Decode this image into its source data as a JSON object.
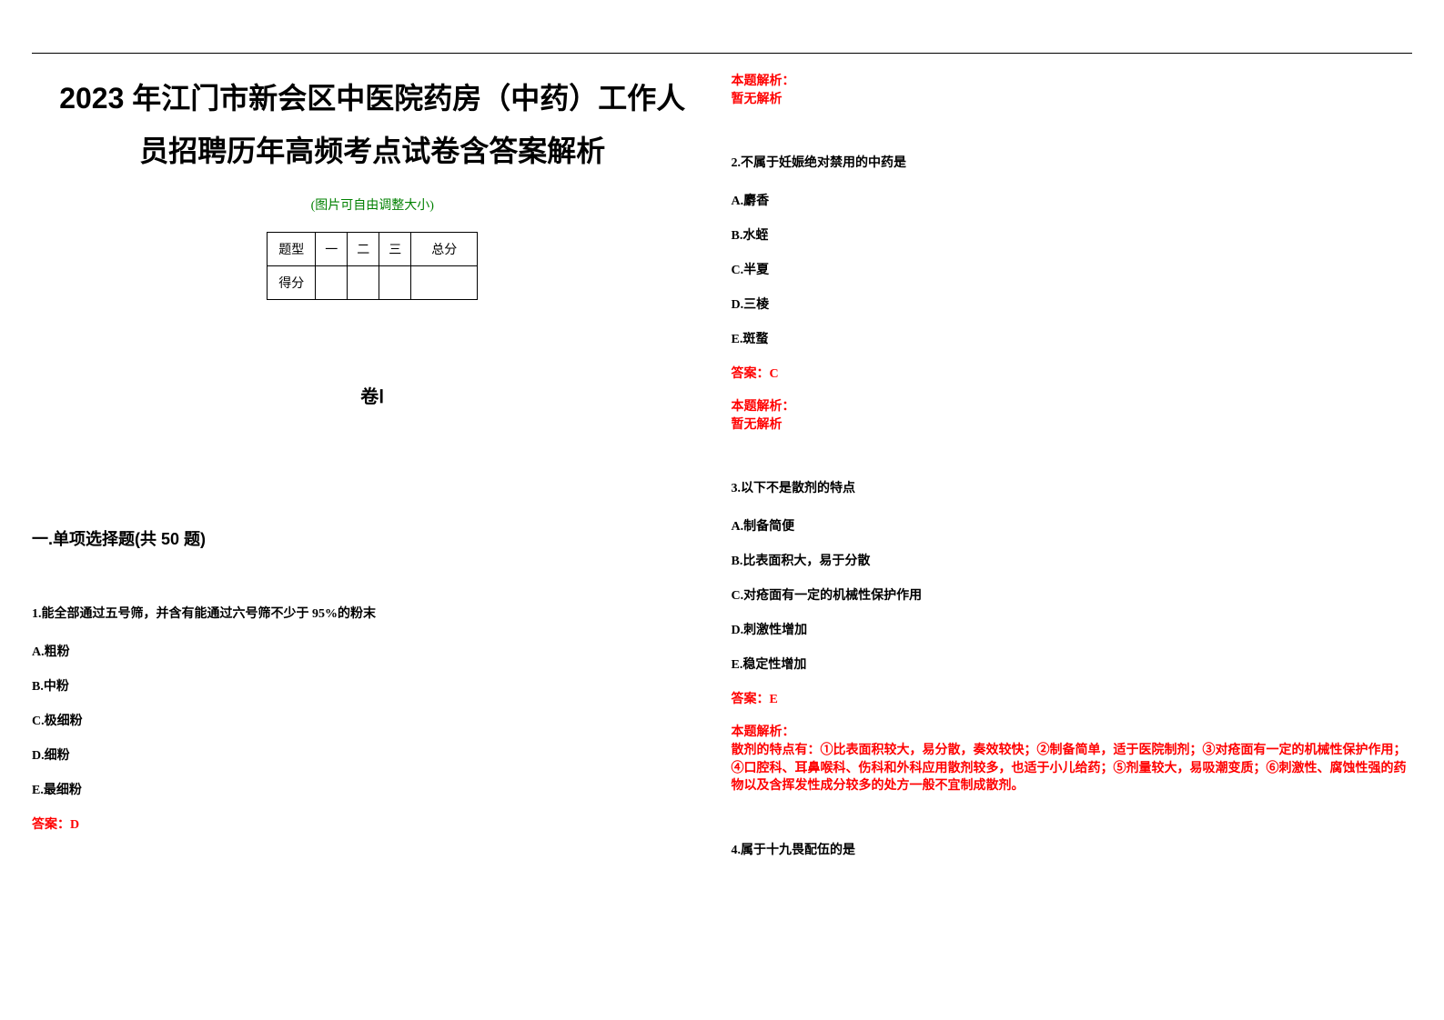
{
  "colors": {
    "text": "#000000",
    "highlight": "#ff0000",
    "note": "#008000",
    "background": "#ffffff",
    "border": "#000000"
  },
  "fonts": {
    "title_size": 32,
    "body_size": 14,
    "section_size": 20,
    "heading_size": 18
  },
  "header": {
    "title_line1": "2023 年江门市新会区中医院药房（中药）工作人",
    "title_line2": "员招聘历年高频考点试卷含答案解析",
    "note": "(图片可自由调整大小)"
  },
  "score_table": {
    "row1": [
      "题型",
      "一",
      "二",
      "三",
      "总分"
    ],
    "row2": [
      "得分",
      "",
      "",
      "",
      ""
    ]
  },
  "section_roman": "卷Ⅰ",
  "section_heading": "一.单项选择题(共 50 题)",
  "q1": {
    "text": "1.能全部通过五号筛，并含有能通过六号筛不少于 95%的粉末",
    "opts": {
      "a": "A.粗粉",
      "b": "B.中粉",
      "c": "C.极细粉",
      "d": "D.细粉",
      "e": "E.最细粉"
    },
    "answer": "答案：D"
  },
  "q1_analysis": {
    "label": "本题解析：",
    "text": "暂无解析"
  },
  "q2": {
    "text": "2.不属于妊娠绝对禁用的中药是",
    "opts": {
      "a": "A.麝香",
      "b": "B.水蛭",
      "c": "C.半夏",
      "d": "D.三棱",
      "e": "E.斑蝥"
    },
    "answer": "答案：C",
    "analysis_label": "本题解析：",
    "analysis_text": "暂无解析"
  },
  "q3": {
    "text": "3.以下不是散剂的特点",
    "opts": {
      "a": "A.制备简便",
      "b": "B.比表面积大，易于分散",
      "c": "C.对疮面有一定的机械性保护作用",
      "d": "D.刺激性增加",
      "e": "E.稳定性增加"
    },
    "answer": "答案：E",
    "analysis_label": "本题解析：",
    "analysis_text": "散剂的特点有：①比表面积较大，易分散，奏效较快；②制备简单，适于医院制剂；③对疮面有一定的机械性保护作用；④口腔科、耳鼻喉科、伤科和外科应用散剂较多，也适于小儿给药；⑤剂量较大，易吸潮变质；⑥刺激性、腐蚀性强的药物以及含挥发性成分较多的处方一般不宜制成散剂。"
  },
  "q4": {
    "text": "4.属于十九畏配伍的是"
  }
}
